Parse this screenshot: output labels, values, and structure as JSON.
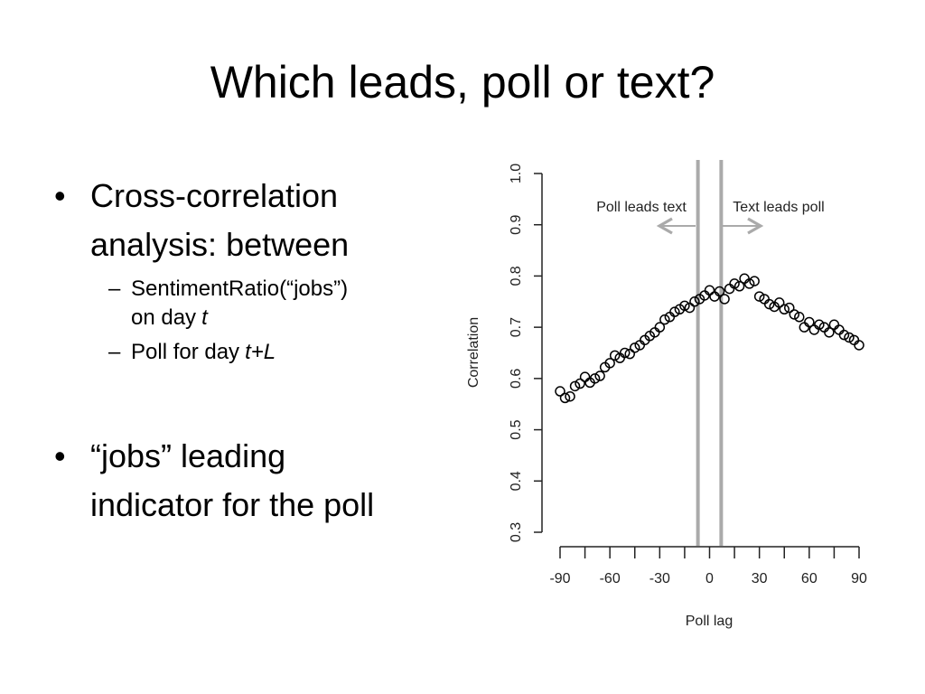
{
  "title": "Which leads, poll or text?",
  "bullets": [
    {
      "text": "Cross-correlation analysis: between",
      "sub": [
        {
          "text": "SentimentRatio(“jobs”) on day",
          "var": "t"
        },
        {
          "text": "Poll for day",
          "var": "t+L"
        }
      ]
    },
    {
      "text": "“jobs” leading indicator for the poll"
    }
  ],
  "chart_data": {
    "type": "scatter",
    "xlabel": "Poll lag",
    "ylabel": "Correlation",
    "annotations": [
      "Poll leads text",
      "Text leads poll"
    ],
    "vlines": [
      -7,
      7
    ],
    "x": [
      -90,
      -87,
      -84,
      -81,
      -78,
      -75,
      -72,
      -69,
      -66,
      -63,
      -60,
      -57,
      -54,
      -51,
      -48,
      -45,
      -42,
      -39,
      -36,
      -33,
      -30,
      -27,
      -24,
      -21,
      -18,
      -15,
      -12,
      -9,
      -6,
      -3,
      0,
      3,
      6,
      9,
      12,
      15,
      18,
      21,
      24,
      27,
      30,
      33,
      36,
      39,
      42,
      45,
      48,
      51,
      54,
      57,
      60,
      63,
      66,
      69,
      72,
      75,
      78,
      81,
      84,
      87,
      90
    ],
    "values": [
      0.575,
      0.562,
      0.565,
      0.585,
      0.59,
      0.603,
      0.592,
      0.6,
      0.605,
      0.622,
      0.63,
      0.645,
      0.64,
      0.65,
      0.648,
      0.66,
      0.665,
      0.675,
      0.683,
      0.69,
      0.7,
      0.715,
      0.72,
      0.73,
      0.735,
      0.742,
      0.738,
      0.75,
      0.755,
      0.762,
      0.772,
      0.76,
      0.77,
      0.755,
      0.775,
      0.785,
      0.78,
      0.795,
      0.785,
      0.79,
      0.76,
      0.755,
      0.745,
      0.74,
      0.748,
      0.735,
      0.738,
      0.725,
      0.72,
      0.7,
      0.71,
      0.695,
      0.705,
      0.7,
      0.69,
      0.705,
      0.695,
      0.685,
      0.68,
      0.675,
      0.665
    ],
    "xlim": [
      -90,
      90
    ],
    "xticks": [
      -90,
      -60,
      -30,
      0,
      30,
      60,
      90
    ],
    "xminor_ticks": [
      -75,
      -45,
      -15,
      15,
      45,
      75
    ],
    "ylim": [
      0.3,
      1
    ],
    "yticks": [
      0.3,
      0.4,
      0.5,
      0.6,
      0.7,
      0.8,
      0.9,
      {
        "value": 1,
        "label": "1.0"
      }
    ]
  }
}
